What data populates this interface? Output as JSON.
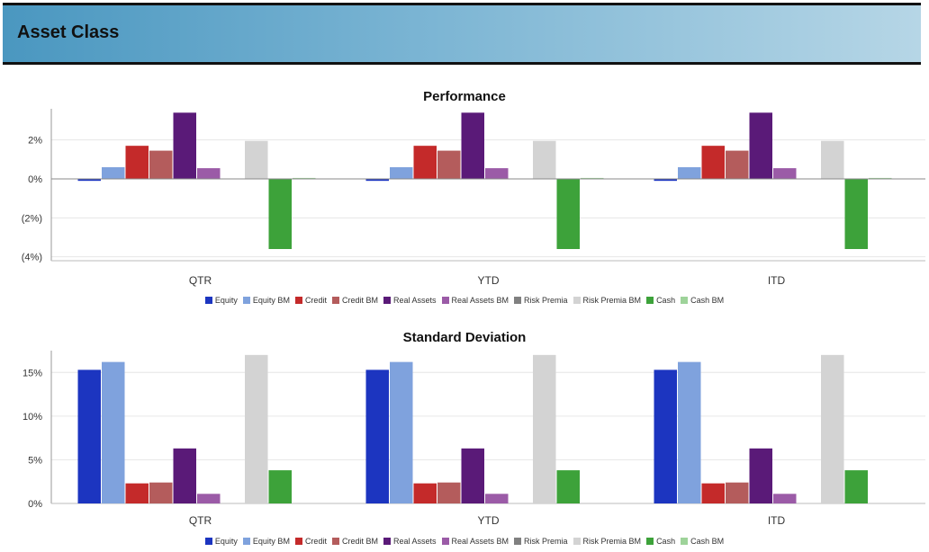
{
  "header": {
    "title": "Asset Class"
  },
  "chart_data": [
    {
      "type": "bar",
      "title": "Performance",
      "categories": [
        "QTR",
        "YTD",
        "ITD"
      ],
      "ylim": [
        -4.2,
        3.6
      ],
      "yticks": [
        {
          "value": 2,
          "label": "2%"
        },
        {
          "value": 0,
          "label": "0%"
        },
        {
          "value": -2,
          "label": "(2%)"
        },
        {
          "value": -4,
          "label": "(4%)"
        }
      ],
      "grid": true,
      "legend_position": "bottom-center",
      "series": [
        {
          "name": "Equity",
          "color": "#1c35c0",
          "values": [
            -0.1,
            -0.1,
            -0.1
          ]
        },
        {
          "name": "Equity BM",
          "color": "#7fa2dd",
          "values": [
            0.6,
            0.6,
            0.6
          ]
        },
        {
          "name": "Credit",
          "color": "#c42a2a",
          "values": [
            1.7,
            1.7,
            1.7
          ]
        },
        {
          "name": "Credit BM",
          "color": "#b45c5c",
          "values": [
            1.45,
            1.45,
            1.45
          ]
        },
        {
          "name": "Real Assets",
          "color": "#5a1a78",
          "values": [
            3.4,
            3.4,
            3.4
          ]
        },
        {
          "name": "Real Assets BM",
          "color": "#9b5ba7",
          "values": [
            0.55,
            0.55,
            0.55
          ]
        },
        {
          "name": "Risk Premia",
          "color": "#808080",
          "values": [
            0,
            0,
            0
          ]
        },
        {
          "name": "Risk Premia BM",
          "color": "#d3d3d3",
          "values": [
            1.95,
            1.95,
            1.95
          ]
        },
        {
          "name": "Cash",
          "color": "#3da23a",
          "values": [
            -3.6,
            -3.6,
            -3.6
          ]
        },
        {
          "name": "Cash BM",
          "color": "#9ed39a",
          "values": [
            0.05,
            0.05,
            0.05
          ]
        }
      ]
    },
    {
      "type": "bar",
      "title": "Standard Deviation",
      "categories": [
        "QTR",
        "YTD",
        "ITD"
      ],
      "ylim": [
        0,
        17.5
      ],
      "yticks": [
        {
          "value": 15,
          "label": "15%"
        },
        {
          "value": 10,
          "label": "10%"
        },
        {
          "value": 5,
          "label": "5%"
        },
        {
          "value": 0,
          "label": "0%"
        }
      ],
      "grid": true,
      "legend_position": "bottom-center",
      "series": [
        {
          "name": "Equity",
          "color": "#1c35c0",
          "values": [
            15.3,
            15.3,
            15.3
          ]
        },
        {
          "name": "Equity BM",
          "color": "#7fa2dd",
          "values": [
            16.2,
            16.2,
            16.2
          ]
        },
        {
          "name": "Credit",
          "color": "#c42a2a",
          "values": [
            2.3,
            2.3,
            2.3
          ]
        },
        {
          "name": "Credit BM",
          "color": "#b45c5c",
          "values": [
            2.4,
            2.4,
            2.4
          ]
        },
        {
          "name": "Real Assets",
          "color": "#5a1a78",
          "values": [
            6.3,
            6.3,
            6.3
          ]
        },
        {
          "name": "Real Assets BM",
          "color": "#9b5ba7",
          "values": [
            1.1,
            1.1,
            1.1
          ]
        },
        {
          "name": "Risk Premia",
          "color": "#808080",
          "values": [
            0,
            0,
            0
          ]
        },
        {
          "name": "Risk Premia BM",
          "color": "#d3d3d3",
          "values": [
            17.0,
            17.0,
            17.0
          ]
        },
        {
          "name": "Cash",
          "color": "#3da23a",
          "values": [
            3.8,
            3.8,
            3.8
          ]
        },
        {
          "name": "Cash BM",
          "color": "#9ed39a",
          "values": [
            0,
            0,
            0
          ]
        }
      ]
    }
  ]
}
